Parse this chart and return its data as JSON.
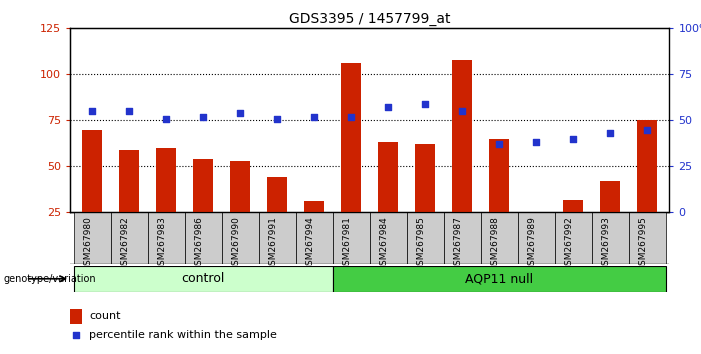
{
  "title": "GDS3395 / 1457799_at",
  "samples": [
    "GSM267980",
    "GSM267982",
    "GSM267983",
    "GSM267986",
    "GSM267990",
    "GSM267991",
    "GSM267994",
    "GSM267981",
    "GSM267984",
    "GSM267985",
    "GSM267987",
    "GSM267988",
    "GSM267989",
    "GSM267992",
    "GSM267993",
    "GSM267995"
  ],
  "counts": [
    70,
    59,
    60,
    54,
    53,
    44,
    31,
    106,
    63,
    62,
    108,
    65,
    22,
    32,
    42,
    75
  ],
  "percentiles": [
    55,
    55,
    51,
    52,
    54,
    51,
    52,
    52,
    57,
    59,
    55,
    37,
    38,
    40,
    43,
    45
  ],
  "group_labels": [
    "control",
    "AQP11 null"
  ],
  "group_control_count": 7,
  "group_aqp11_count": 9,
  "ylim_left": [
    25,
    125
  ],
  "ylim_right": [
    0,
    100
  ],
  "yticks_left": [
    25,
    50,
    75,
    100,
    125
  ],
  "yticks_right": [
    0,
    25,
    50,
    75,
    100
  ],
  "bar_color": "#cc2200",
  "dot_color": "#2233cc",
  "control_bg": "#ccffcc",
  "aqp11_bg": "#44cc44",
  "ticklabel_bg": "#cccccc",
  "ylabel_left_color": "#cc2200",
  "ylabel_right_color": "#2233cc",
  "genotype_label": "genotype/variation",
  "legend_count": "count",
  "legend_percentile": "percentile rank within the sample"
}
